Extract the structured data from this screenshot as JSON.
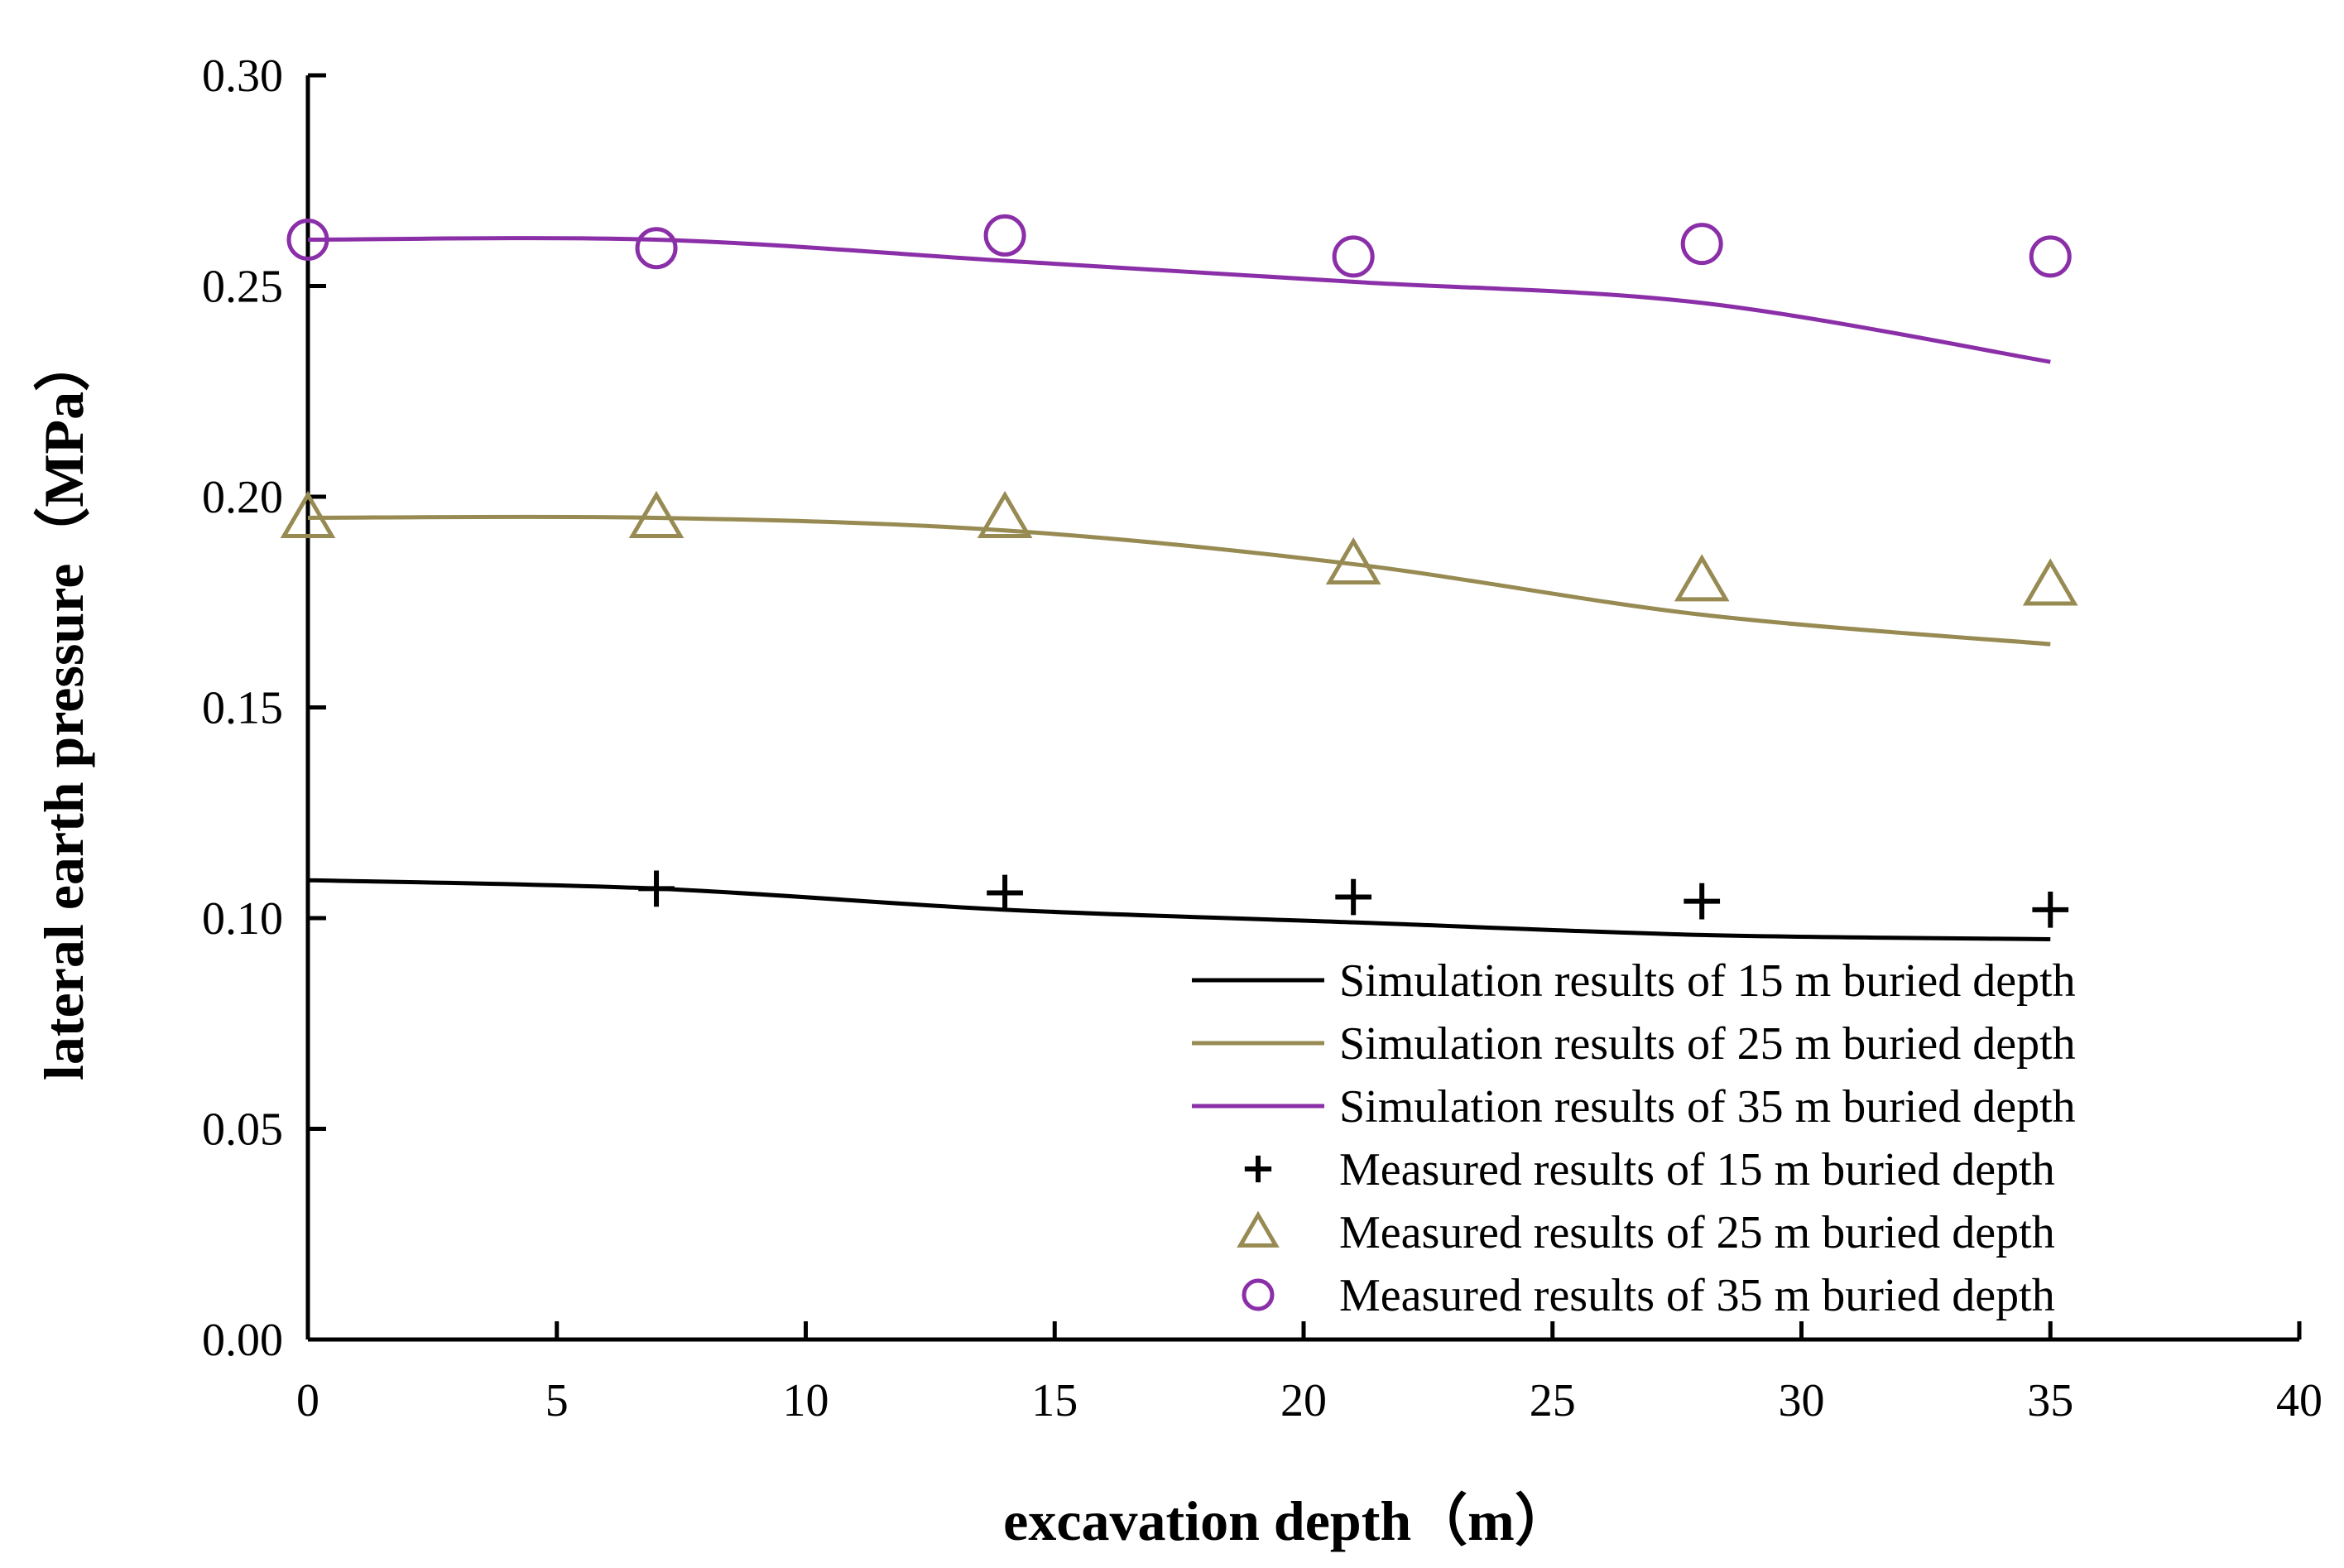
{
  "chart_data": {
    "type": "line",
    "xlabel": "excavation depth（m）",
    "ylabel": "lateral earth pressure（MPa）",
    "xlim": [
      0,
      40
    ],
    "ylim": [
      0,
      0.3
    ],
    "x_ticks": [
      0,
      5,
      10,
      15,
      20,
      25,
      30,
      35,
      40
    ],
    "y_ticks": [
      0.0,
      0.05,
      0.1,
      0.15,
      0.2,
      0.25,
      0.3
    ],
    "x_tick_labels": [
      "0",
      "5",
      "10",
      "15",
      "20",
      "25",
      "30",
      "35",
      "40"
    ],
    "y_tick_labels": [
      "0.00",
      "0.05",
      "0.10",
      "0.15",
      "0.20",
      "0.25",
      "0.30"
    ],
    "grid": false,
    "legend_position": "bottom-right",
    "series": [
      {
        "name": "Simulation results of 15 m buried depth",
        "kind": "line",
        "color": "#000000",
        "x": [
          0,
          7,
          14,
          21,
          28,
          35
        ],
        "y": [
          0.109,
          0.107,
          0.102,
          0.099,
          0.096,
          0.095
        ]
      },
      {
        "name": "Simulation results of 25 m buried depth",
        "kind": "line",
        "color": "#978A52",
        "x": [
          0,
          7,
          14,
          21,
          28,
          35
        ],
        "y": [
          0.195,
          0.195,
          0.192,
          0.184,
          0.172,
          0.165
        ]
      },
      {
        "name": "Simulation results of 35 m buried depth",
        "kind": "line",
        "color": "#8B2FA8",
        "x": [
          0,
          7,
          14,
          21,
          28,
          35
        ],
        "y": [
          0.261,
          0.261,
          0.256,
          0.251,
          0.246,
          0.232
        ]
      },
      {
        "name": "Measured results of 15 m buried depth",
        "kind": "scatter",
        "marker": "plus",
        "color": "#000000",
        "x": [
          7,
          14,
          21,
          28,
          35
        ],
        "y": [
          0.107,
          0.106,
          0.105,
          0.104,
          0.102
        ]
      },
      {
        "name": "Measured results of 25 m buried depth",
        "kind": "scatter",
        "marker": "triangle",
        "color": "#978A52",
        "x": [
          0,
          7,
          14,
          21,
          28,
          35
        ],
        "y": [
          0.195,
          0.195,
          0.195,
          0.184,
          0.18,
          0.179
        ]
      },
      {
        "name": "Measured results of 35 m buried depth",
        "kind": "scatter",
        "marker": "circle",
        "color": "#8B2FA8",
        "x": [
          0,
          7,
          14,
          21,
          28,
          35
        ],
        "y": [
          0.261,
          0.259,
          0.262,
          0.257,
          0.26,
          0.257
        ]
      }
    ]
  }
}
